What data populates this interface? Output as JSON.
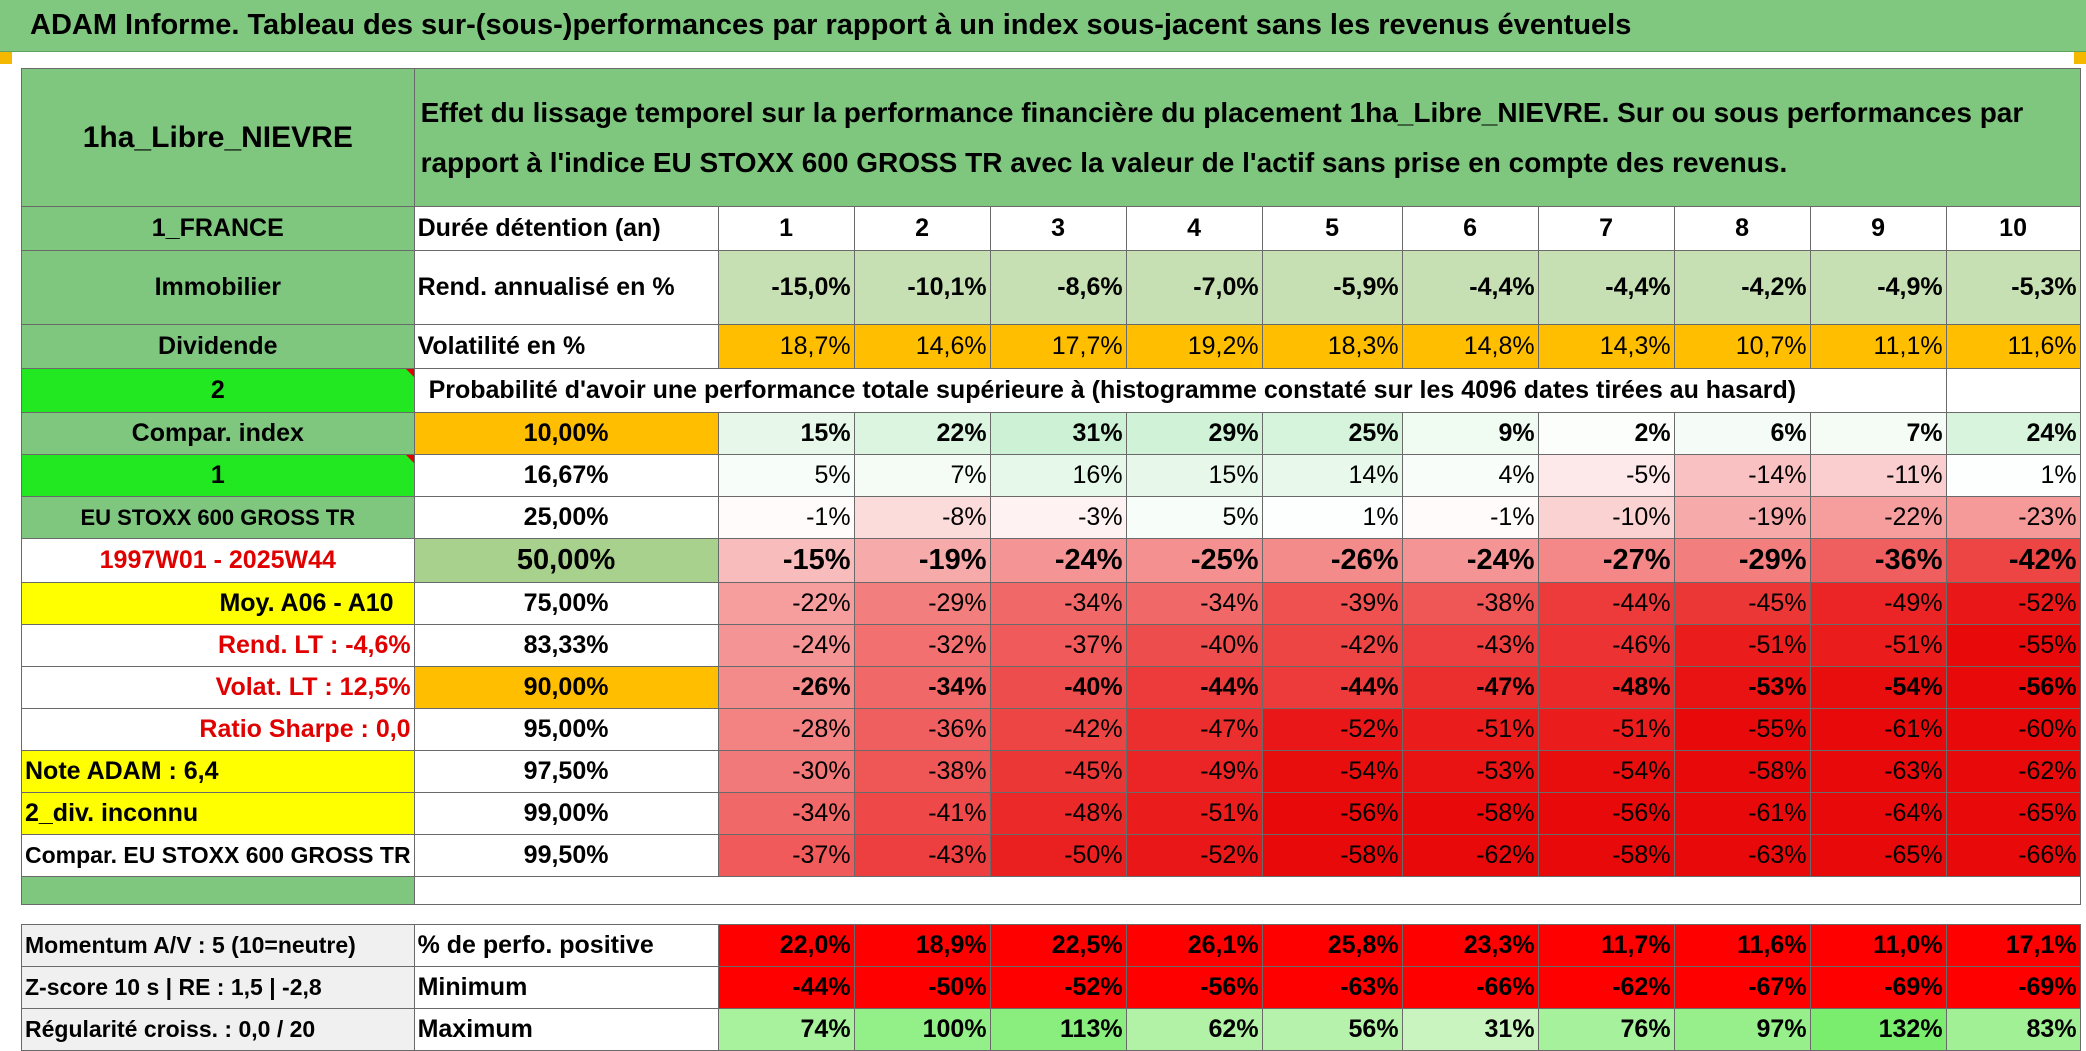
{
  "title": "ADAM Informe. Tableau des sur-(sous-)performances par rapport à un index sous-jacent sans les revenus éventuels",
  "header": {
    "asset_name": "1ha_Libre_NIEVRE",
    "description": "Effet du lissage temporel sur la performance financière du placement 1ha_Libre_NIEVRE. Sur ou sous performances par rapport à l'indice EU STOXX 600 GROSS TR avec la valeur de l'actif sans prise en compte des revenus."
  },
  "left_labels": {
    "country": "1_FRANCE",
    "category": "Immobilier",
    "income": "Dividende",
    "param1": "2",
    "compar_index": "Compar. index",
    "param2": "1",
    "index_name": "EU STOXX 600 GROSS TR",
    "period": "1997W01 - 2025W44",
    "moy": "Moy. A06 - A10",
    "rend_lt": "Rend. LT :    -4,6%",
    "volat_lt": "Volat. LT :    12,5%",
    "sharpe": "Ratio Sharpe :    0,0",
    "note": "Note ADAM : 6,4",
    "div": "2_div. inconnu",
    "compar_full": "Compar. EU STOXX 600 GROSS TR",
    "momentum": "Momentum A/V : 5 (10=neutre)",
    "zscore": "Z-score 10 s | RE : 1,5 | -2,8",
    "regularite": "Régularité croiss. : 0,0 / 20"
  },
  "stats": {
    "duration_label": "Durée détention (an)",
    "years": [
      "1",
      "2",
      "3",
      "4",
      "5",
      "6",
      "7",
      "8",
      "9",
      "10"
    ],
    "rend_label": "Rend. annualisé en %",
    "rend": [
      "-15,0%",
      "-10,1%",
      "-8,6%",
      "-7,0%",
      "-5,9%",
      "-4,4%",
      "-4,4%",
      "-4,2%",
      "-4,9%",
      "-5,3%"
    ],
    "vol_label": "Volatilité en %",
    "vol": [
      "18,7%",
      "14,6%",
      "17,7%",
      "19,2%",
      "18,3%",
      "14,8%",
      "14,3%",
      "10,7%",
      "11,1%",
      "11,6%"
    ]
  },
  "prob_caption": "Probabilité d'avoir une performance totale supérieure à (histogramme constaté sur les 4096 dates tirées au hasard)",
  "prob_rows": [
    {
      "label": "10,00%",
      "values": [
        "15%",
        "22%",
        "31%",
        "29%",
        "25%",
        "9%",
        "2%",
        "6%",
        "7%",
        "24%"
      ]
    },
    {
      "label": "16,67%",
      "values": [
        "5%",
        "7%",
        "16%",
        "15%",
        "14%",
        "4%",
        "-5%",
        "-14%",
        "-11%",
        "1%"
      ]
    },
    {
      "label": "25,00%",
      "values": [
        "-1%",
        "-8%",
        "-3%",
        "5%",
        "1%",
        "-1%",
        "-10%",
        "-19%",
        "-22%",
        "-23%"
      ]
    },
    {
      "label": "50,00%",
      "values": [
        "-15%",
        "-19%",
        "-24%",
        "-25%",
        "-26%",
        "-24%",
        "-27%",
        "-29%",
        "-36%",
        "-42%"
      ]
    },
    {
      "label": "75,00%",
      "values": [
        "-22%",
        "-29%",
        "-34%",
        "-34%",
        "-39%",
        "-38%",
        "-44%",
        "-45%",
        "-49%",
        "-52%"
      ]
    },
    {
      "label": "83,33%",
      "values": [
        "-24%",
        "-32%",
        "-37%",
        "-40%",
        "-42%",
        "-43%",
        "-46%",
        "-51%",
        "-51%",
        "-55%"
      ]
    },
    {
      "label": "90,00%",
      "values": [
        "-26%",
        "-34%",
        "-40%",
        "-44%",
        "-44%",
        "-47%",
        "-48%",
        "-53%",
        "-54%",
        "-56%"
      ]
    },
    {
      "label": "95,00%",
      "values": [
        "-28%",
        "-36%",
        "-42%",
        "-47%",
        "-52%",
        "-51%",
        "-51%",
        "-55%",
        "-61%",
        "-60%"
      ]
    },
    {
      "label": "97,50%",
      "values": [
        "-30%",
        "-38%",
        "-45%",
        "-49%",
        "-54%",
        "-53%",
        "-54%",
        "-58%",
        "-63%",
        "-62%"
      ]
    },
    {
      "label": "99,00%",
      "values": [
        "-34%",
        "-41%",
        "-48%",
        "-51%",
        "-56%",
        "-58%",
        "-56%",
        "-61%",
        "-64%",
        "-65%"
      ]
    },
    {
      "label": "99,50%",
      "values": [
        "-37%",
        "-43%",
        "-50%",
        "-52%",
        "-58%",
        "-62%",
        "-58%",
        "-63%",
        "-65%",
        "-66%"
      ]
    }
  ],
  "bottom": {
    "pos_label": "% de perfo. positive",
    "pos": [
      "22,0%",
      "18,9%",
      "22,5%",
      "26,1%",
      "25,8%",
      "23,3%",
      "11,7%",
      "11,6%",
      "11,0%",
      "17,1%"
    ],
    "min_label": "Minimum",
    "min": [
      "-44%",
      "-50%",
      "-52%",
      "-56%",
      "-63%",
      "-66%",
      "-62%",
      "-67%",
      "-69%",
      "-69%"
    ],
    "max_label": "Maximum",
    "max": [
      "74%",
      "100%",
      "113%",
      "62%",
      "56%",
      "31%",
      "76%",
      "97%",
      "132%",
      "83%"
    ]
  }
}
